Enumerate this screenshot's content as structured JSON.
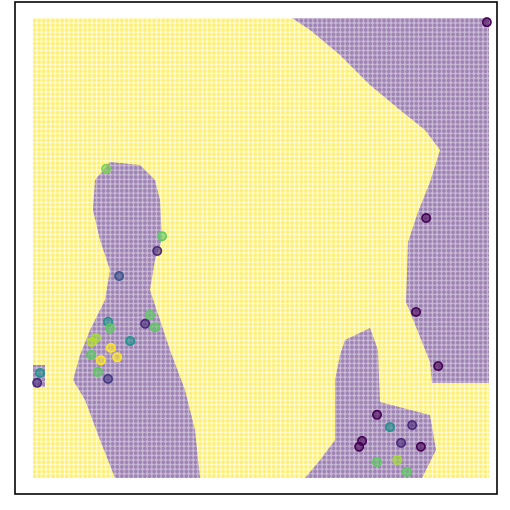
{
  "chart_data": {
    "type": "scatter",
    "xlim": [
      0,
      100
    ],
    "ylim": [
      0,
      100
    ],
    "x": [
      97.9,
      85.3,
      83.2,
      87.8,
      18.9,
      30.5,
      29.5,
      21.6,
      28.0,
      27.0,
      29.0,
      19.3,
      19.7,
      16.8,
      15.9,
      23.9,
      19.9,
      15.8,
      17.8,
      21.2,
      17.2,
      19.3,
      5.2,
      4.6,
      75.1,
      77.8,
      82.4,
      72.0,
      71.4,
      80.1,
      84.2,
      75.1,
      79.3,
      81.3
    ],
    "y": [
      95.9,
      56.1,
      37.0,
      26.0,
      66.1,
      52.4,
      49.4,
      44.3,
      36.4,
      34.6,
      33.9,
      35.0,
      33.7,
      31.7,
      30.9,
      31.1,
      29.7,
      28.3,
      27.2,
      27.8,
      24.8,
      23.4,
      24.6,
      22.6,
      16.1,
      13.6,
      14.0,
      10.8,
      9.6,
      10.4,
      9.6,
      6.5,
      6.9,
      4.5
    ],
    "colors": [
      "#440154",
      "#440154",
      "#440154",
      "#440154",
      "#7ad151",
      "#5ec962",
      "#482878",
      "#3b528b",
      "#5ec962",
      "#482878",
      "#5ec962",
      "#21918c",
      "#5ec962",
      "#a0da39",
      "#b5de2b",
      "#21918c",
      "#fde725",
      "#5ec962",
      "#fde725",
      "#fde725",
      "#5ec962",
      "#443a83",
      "#21918c",
      "#482878",
      "#440154",
      "#21918c",
      "#482878",
      "#440154",
      "#440154",
      "#482878",
      "#440154",
      "#5ec962",
      "#a0da39",
      "#5ec962"
    ]
  }
}
